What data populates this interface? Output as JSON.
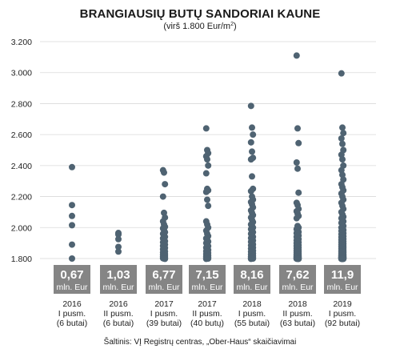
{
  "title": "BRANGIAUSIŲ BUTŲ SANDORIAI KAUNE",
  "subtitle_prefix": "(virš 1.800 Eur/m",
  "subtitle_sup": "2",
  "subtitle_suffix": ")",
  "source": "Šaltinis: VĮ Registrų centras, „Ober-Haus“ skaičiavimai",
  "colors": {
    "dot": "#4f6372",
    "box": "#858585",
    "grid": "#d9d9d9"
  },
  "chart_data": {
    "type": "scatter",
    "ylim": [
      1800,
      3200
    ],
    "ytick_values": [
      1800,
      2000,
      2200,
      2400,
      2600,
      2800,
      3000,
      3200
    ],
    "ytick_labels": [
      "1.800",
      "2.000",
      "2.200",
      "2.400",
      "2.600",
      "2.800",
      "3.000",
      "3.200"
    ],
    "grid": true,
    "categories": [
      {
        "line1": "2016",
        "line2": "I pusm.",
        "line3": "(6 butai)",
        "value_main": "0,67",
        "value_unit": "mln. Eur",
        "points": [
          2390,
          2145,
          2075,
          2015,
          1890,
          1800
        ]
      },
      {
        "line1": "2016",
        "line2": "II pusm.",
        "line3": "(6 butai)",
        "value_main": "1,03",
        "value_unit": "mln. Eur",
        "points": [
          1965,
          1960,
          1955,
          1925,
          1875,
          1845
        ]
      },
      {
        "line1": "2017",
        "line2": "I pusm.",
        "line3": "(39 butai)",
        "value_main": "6,77",
        "value_unit": "mln. Eur",
        "points": [
          2370,
          2355,
          2280,
          2200,
          2095,
          2065,
          2040,
          2020,
          2005,
          1995,
          1985,
          1970,
          1960,
          1950,
          1940,
          1930,
          1920,
          1912,
          1905,
          1898,
          1890,
          1882,
          1875,
          1868,
          1860,
          1853,
          1846,
          1840,
          1835,
          1830,
          1825,
          1820,
          1816,
          1812,
          1808,
          1805,
          1802,
          1800,
          1798
        ]
      },
      {
        "line1": "2017",
        "line2": "II pusm.",
        "line3": "(40 butų)",
        "value_main": "7,15",
        "value_unit": "mln. Eur",
        "points": [
          2640,
          2500,
          2480,
          2460,
          2440,
          2400,
          2350,
          2250,
          2240,
          2230,
          2180,
          2140,
          2040,
          2020,
          2000,
          1980,
          1960,
          1945,
          1930,
          1920,
          1910,
          1900,
          1890,
          1880,
          1870,
          1862,
          1855,
          1848,
          1842,
          1836,
          1830,
          1825,
          1820,
          1815,
          1812,
          1808,
          1805,
          1802,
          1800,
          1798
        ]
      },
      {
        "line1": "2018",
        "line2": "I pusm.",
        "line3": "(55 butai)",
        "value_main": "8,16",
        "value_unit": "mln. Eur",
        "points": [
          2785,
          2645,
          2600,
          2550,
          2490,
          2450,
          2440,
          2330,
          2250,
          2235,
          2200,
          2180,
          2165,
          2150,
          2130,
          2110,
          2095,
          2080,
          2065,
          2050,
          2035,
          2020,
          2010,
          2000,
          1990,
          1980,
          1970,
          1960,
          1950,
          1940,
          1932,
          1924,
          1916,
          1908,
          1900,
          1892,
          1885,
          1878,
          1871,
          1864,
          1857,
          1850,
          1844,
          1838,
          1832,
          1826,
          1821,
          1816,
          1812,
          1808,
          1805,
          1803,
          1801,
          1800,
          1798
        ]
      },
      {
        "line1": "2018",
        "line2": "II pusm.",
        "line3": "(63 butai)",
        "value_main": "7,62",
        "value_unit": "mln. Eur",
        "points": [
          3110,
          2640,
          2545,
          2420,
          2380,
          2225,
          2160,
          2145,
          2120,
          2105,
          2090,
          2075,
          2060,
          2010,
          2000,
          1990,
          1980,
          1972,
          1964,
          1956,
          1948,
          1940,
          1932,
          1925,
          1918,
          1911,
          1905,
          1899,
          1893,
          1887,
          1881,
          1876,
          1871,
          1866,
          1861,
          1856,
          1851,
          1847,
          1843,
          1839,
          1835,
          1831,
          1828,
          1825,
          1822,
          1819,
          1816,
          1814,
          1812,
          1810,
          1808,
          1806,
          1805,
          1804,
          1803,
          1802,
          1801,
          1800,
          1800,
          1799,
          1799,
          1798,
          1798
        ]
      },
      {
        "line1": "2019",
        "line2": "I pusm.",
        "line3": "(92 butai)",
        "value_main": "11,9",
        "value_unit": "mln. Eur",
        "points": [
          2995,
          2645,
          2610,
          2575,
          2540,
          2500,
          2470,
          2440,
          2400,
          2370,
          2340,
          2310,
          2280,
          2260,
          2240,
          2220,
          2200,
          2180,
          2160,
          2140,
          2120,
          2100,
          2085,
          2070,
          2060,
          2050,
          2040,
          2030,
          2020,
          2010,
          2000,
          1992,
          1985,
          1978,
          1971,
          1964,
          1957,
          1950,
          1944,
          1938,
          1932,
          1926,
          1920,
          1915,
          1910,
          1905,
          1900,
          1895,
          1890,
          1885,
          1880,
          1876,
          1872,
          1868,
          1864,
          1860,
          1856,
          1852,
          1849,
          1846,
          1843,
          1840,
          1837,
          1834,
          1831,
          1828,
          1826,
          1824,
          1822,
          1820,
          1818,
          1816,
          1814,
          1812,
          1811,
          1810,
          1809,
          1808,
          1807,
          1806,
          1805,
          1804,
          1803,
          1802,
          1801,
          1800,
          1800,
          1799,
          1799,
          1798,
          1798,
          1797
        ]
      }
    ]
  }
}
